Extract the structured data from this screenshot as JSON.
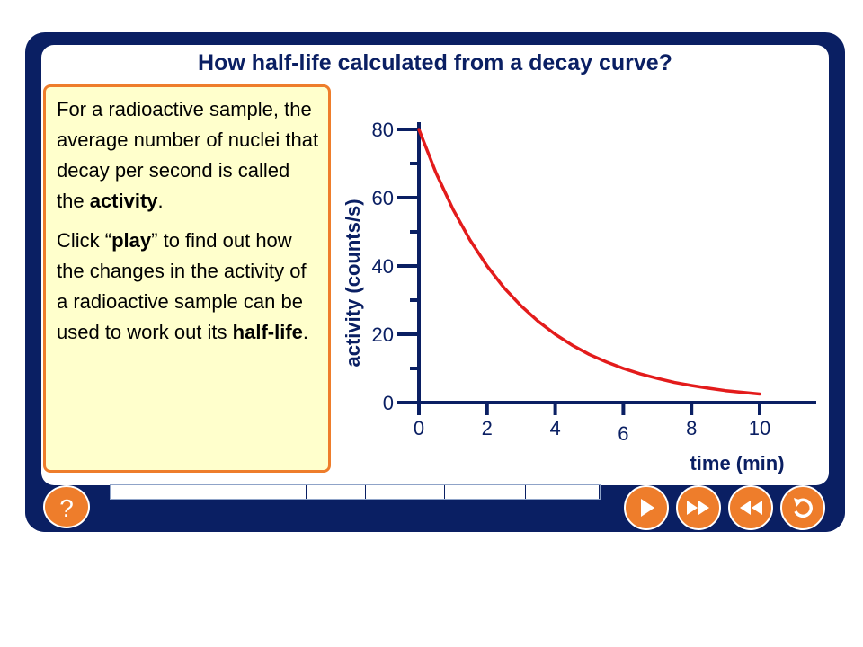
{
  "title": "How half-life calculated from a decay curve?",
  "info": {
    "p1_a": "For a radioactive sample, the average number of nuclei that decay per second is called the ",
    "p1_bold": "activity",
    "p1_end": ".",
    "p2_a": "Click “",
    "p2_bold1": "play",
    "p2_b": "” to find out how the changes in the activity of a radioactive sample can be used to work out its ",
    "p2_bold2": "half-life",
    "p2_end": "."
  },
  "controls": {
    "help_label": "?",
    "progress_segments": 5
  },
  "colors": {
    "frame": "#0a1f63",
    "accent": "#ee7d2b",
    "curve": "#e31b1b",
    "panel": "#ffffcc"
  },
  "icons": [
    "help-icon",
    "play-icon",
    "fast-forward-icon",
    "rewind-icon",
    "replay-icon"
  ],
  "chart_data": {
    "type": "line",
    "ylabel": "activity (counts/s)",
    "xlabel": "time (min)",
    "xlim": [
      0,
      10
    ],
    "ylim": [
      0,
      80
    ],
    "x_ticks": [
      "0",
      "2",
      "4",
      "6",
      "8",
      "10"
    ],
    "y_ticks": [
      "0",
      "20",
      "40",
      "60",
      "80"
    ],
    "series": [
      {
        "x": [
          0,
          0.5,
          1,
          1.5,
          2,
          2.5,
          3,
          3.5,
          4,
          4.5,
          5,
          5.5,
          6,
          6.5,
          7,
          7.5,
          8,
          8.5,
          9,
          9.5,
          10
        ],
        "values": [
          80,
          67.3,
          56.6,
          47.6,
          40,
          33.6,
          28.3,
          23.8,
          20,
          16.8,
          14.1,
          11.9,
          10,
          8.4,
          7.1,
          5.9,
          5,
          4.2,
          3.5,
          3.0,
          2.5
        ]
      }
    ],
    "grid": false
  }
}
